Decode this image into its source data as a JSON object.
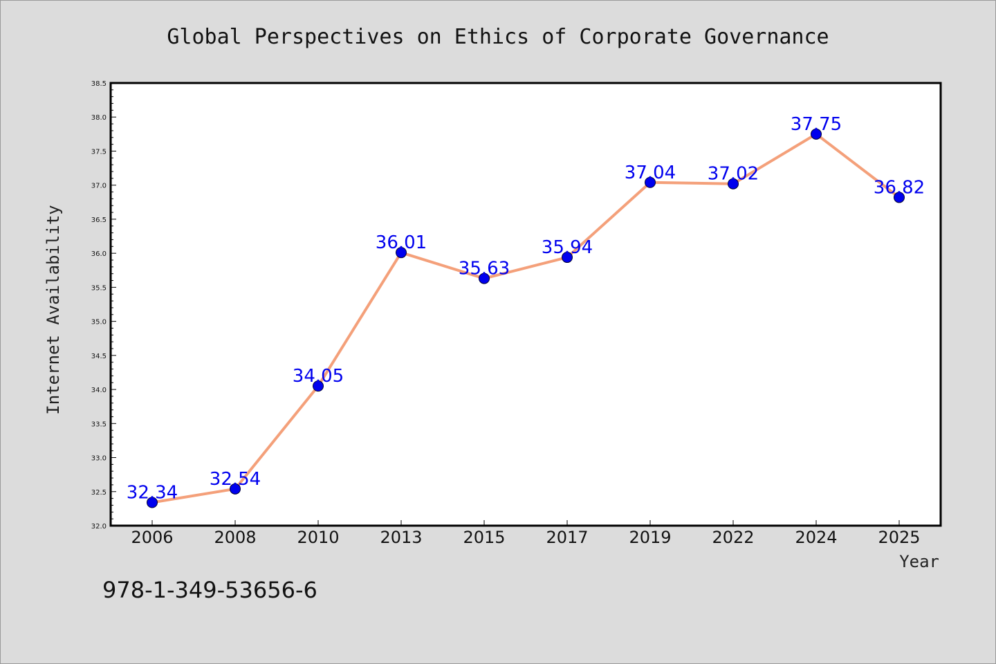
{
  "chart_data": {
    "type": "line",
    "title": "Global Perspectives on Ethics of Corporate Governance",
    "xlabel": "Year",
    "ylabel": "Internet Availability",
    "categories": [
      "2006",
      "2008",
      "2010",
      "2013",
      "2015",
      "2017",
      "2019",
      "2022",
      "2024",
      "2025"
    ],
    "values": [
      32.34,
      32.54,
      34.05,
      36.01,
      35.63,
      35.94,
      37.04,
      37.02,
      37.75,
      36.82
    ],
    "data_labels": [
      "32.34",
      "32.54",
      "34.05",
      "36.01",
      "35.63",
      "35.94",
      "37.04",
      "37.02",
      "37.75",
      "36.82"
    ],
    "ylim": [
      32.0,
      38.5
    ],
    "yticks": [
      "32.0",
      "32.5",
      "33.0",
      "33.5",
      "34.0",
      "34.5",
      "35.0",
      "35.5",
      "36.0",
      "36.5",
      "37.0",
      "37.5",
      "38.0",
      "38.5"
    ],
    "grid": false,
    "colors": {
      "line": "#f4a07a",
      "marker": "#0000ee",
      "label": "#0000ee",
      "background": "#dcdcdc",
      "plot_background": "#ffffff"
    }
  },
  "isbn": "978-1-349-53656-6"
}
